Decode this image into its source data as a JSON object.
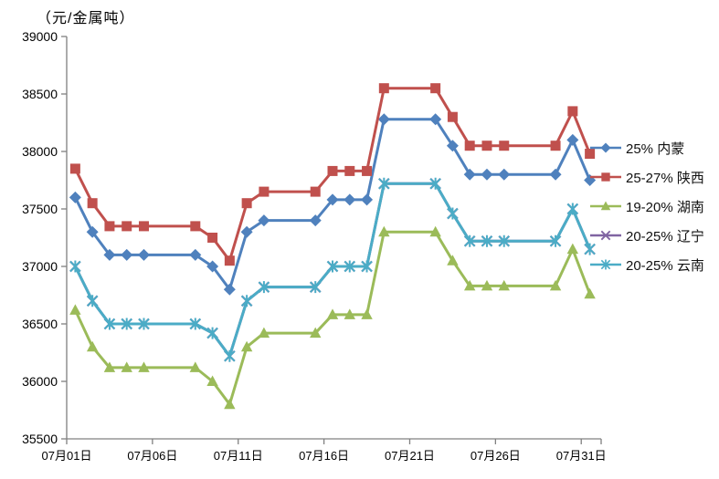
{
  "chart_data": {
    "type": "line",
    "title": "（元/金属吨）",
    "unit_note": "元/金属吨",
    "grid": false,
    "legend_position": "right",
    "ylim": [
      35500,
      39000
    ],
    "ytick_step": 500,
    "x_axis": {
      "total_days": 31,
      "tick_labels": [
        "07月01日",
        "07月06日",
        "07月11日",
        "07月16日",
        "07月21日",
        "07月26日",
        "07月31日"
      ],
      "tick_days": [
        1,
        6,
        11,
        16,
        21,
        26,
        31
      ]
    },
    "x_days": [
      1,
      2,
      3,
      4,
      5,
      8,
      9,
      10,
      11,
      12,
      15,
      16,
      17,
      18,
      19,
      22,
      23,
      24,
      25,
      26,
      29,
      30,
      31
    ],
    "series": [
      {
        "name": "25% 内蒙",
        "color": "#4F81BD",
        "marker": "diamond",
        "values": [
          37600,
          37300,
          37100,
          37100,
          37100,
          37100,
          37000,
          36800,
          37300,
          37400,
          37400,
          37580,
          37580,
          37580,
          38280,
          38280,
          38050,
          37800,
          37800,
          37800,
          37800,
          38100,
          37750
        ]
      },
      {
        "name": "25-27% 陕西",
        "color": "#C0504D",
        "marker": "square",
        "values": [
          37850,
          37550,
          37350,
          37350,
          37350,
          37350,
          37250,
          37050,
          37550,
          37650,
          37650,
          37830,
          37830,
          37830,
          38550,
          38550,
          38300,
          38050,
          38050,
          38050,
          38050,
          38350,
          37980
        ]
      },
      {
        "name": "19-20% 湖南",
        "color": "#9BBB59",
        "marker": "triangle",
        "values": [
          36620,
          36300,
          36120,
          36120,
          36120,
          36120,
          36000,
          35800,
          36300,
          36420,
          36420,
          36580,
          36580,
          36580,
          37300,
          37300,
          37050,
          36830,
          36830,
          36830,
          36830,
          37150,
          36760
        ]
      },
      {
        "name": "20-25% 辽宁",
        "color": "#8064A2",
        "marker": "x",
        "values": [
          37000,
          36700,
          36500,
          36500,
          36500,
          36500,
          36420,
          36220,
          36700,
          36820,
          36820,
          37000,
          37000,
          37000,
          37720,
          37720,
          37460,
          37220,
          37220,
          37220,
          37220,
          37500,
          37150
        ]
      },
      {
        "name": "20-25% 云南",
        "color": "#4BACC6",
        "marker": "star",
        "values": [
          37000,
          36700,
          36500,
          36500,
          36500,
          36500,
          36420,
          36220,
          36700,
          36820,
          36820,
          37000,
          37000,
          37000,
          37720,
          37720,
          37460,
          37220,
          37220,
          37220,
          37220,
          37500,
          37150
        ]
      }
    ]
  }
}
